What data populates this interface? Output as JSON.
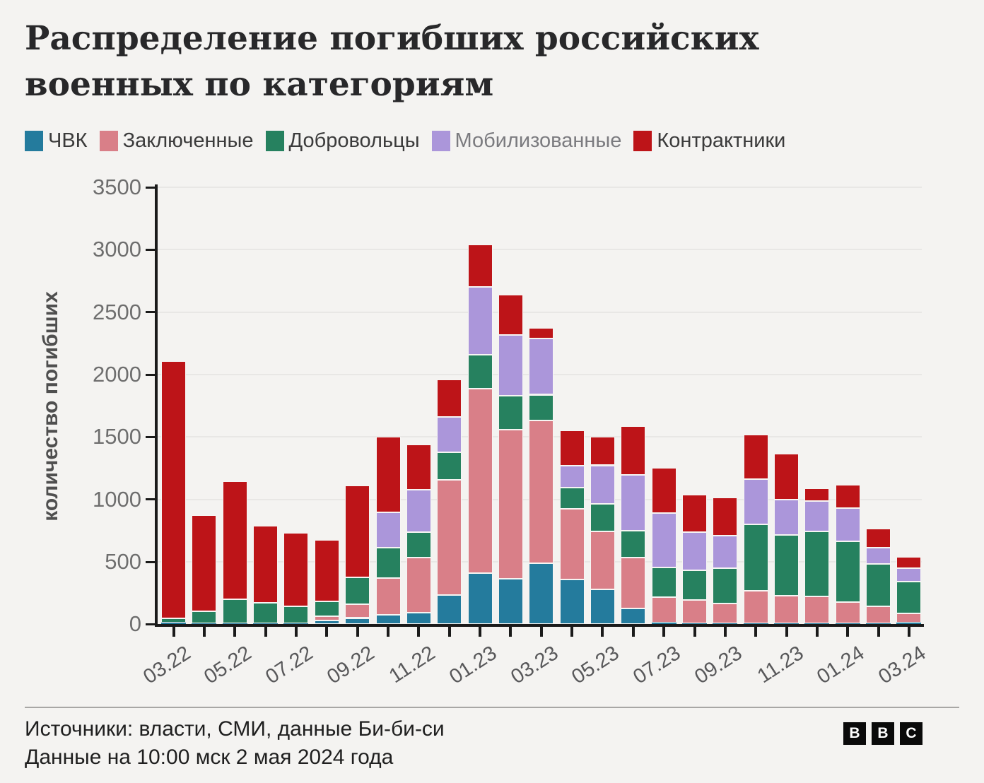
{
  "title": {
    "lines": [
      "Распределение погибших российских",
      "военных по категориям"
    ]
  },
  "legend": {
    "items": [
      {
        "label": "ЧВК",
        "color": "#247b9d",
        "text_color": "#3b3b3b"
      },
      {
        "label": "Заключенные",
        "color": "#d97f88",
        "text_color": "#3b3b3b"
      },
      {
        "label": "Добровольцы",
        "color": "#26815f",
        "text_color": "#3b3b3b"
      },
      {
        "label": "Мобилизованные",
        "color": "#ab96da",
        "text_color": "#7b7b7f"
      },
      {
        "label": "Контрактники",
        "color": "#bd1418",
        "text_color": "#3b3b3b"
      }
    ]
  },
  "chart_data": {
    "type": "bar",
    "stacked": true,
    "ylabel": "количество погибших",
    "xlabel": "",
    "ylim": [
      0,
      3500
    ],
    "grid": true,
    "legend_position": "top",
    "y_ticks": [
      0,
      500,
      1000,
      1500,
      2000,
      2500,
      3000,
      3500
    ],
    "categories": [
      "03.22",
      "04.22",
      "05.22",
      "06.22",
      "07.22",
      "08.22",
      "09.22",
      "10.22",
      "11.22",
      "12.22",
      "01.23",
      "02.23",
      "03.23",
      "04.23",
      "05.23",
      "06.23",
      "07.23",
      "08.23",
      "09.23",
      "10.23",
      "11.23",
      "12.23",
      "01.24",
      "02.24",
      "03.24"
    ],
    "x_tick_labels_shown": [
      "03.22",
      "05.22",
      "07.22",
      "09.22",
      "11.22",
      "01.23",
      "03.23",
      "05.23",
      "07.23",
      "09.23",
      "11.23",
      "01.24",
      "03.24"
    ],
    "series": [
      {
        "name": "ЧВК",
        "color": "#247b9d",
        "values": [
          12,
          6,
          6,
          6,
          5,
          28,
          50,
          75,
          91,
          232,
          409,
          364,
          487,
          358,
          279,
          126,
          13,
          9,
          6,
          9,
          8,
          8,
          6,
          5,
          15
        ]
      },
      {
        "name": "Заключенные",
        "color": "#d97f88",
        "values": [
          0,
          0,
          0,
          0,
          0,
          38,
          110,
          297,
          441,
          923,
          1477,
          1196,
          1145,
          566,
          466,
          406,
          204,
          183,
          158,
          259,
          222,
          214,
          173,
          136,
          70
        ]
      },
      {
        "name": "Добровольцы",
        "color": "#26815f",
        "values": [
          36,
          97,
          192,
          164,
          140,
          119,
          217,
          241,
          204,
          222,
          274,
          270,
          207,
          170,
          217,
          217,
          239,
          242,
          283,
          534,
          483,
          523,
          487,
          340,
          254
        ]
      },
      {
        "name": "Мобилизованные",
        "color": "#ab96da",
        "values": [
          0,
          0,
          0,
          0,
          0,
          0,
          0,
          283,
          343,
          283,
          542,
          485,
          449,
          176,
          311,
          445,
          434,
          305,
          260,
          358,
          287,
          242,
          262,
          132,
          110
        ]
      },
      {
        "name": "Контрактники",
        "color": "#bd1418",
        "values": [
          2062,
          769,
          949,
          621,
          585,
          491,
          736,
          604,
          359,
          302,
          343,
          326,
          89,
          283,
          227,
          394,
          364,
          298,
          308,
          362,
          364,
          101,
          189,
          151,
          92
        ]
      }
    ],
    "totals": [
      2110,
      872,
      1147,
      791,
      730,
      676,
      1113,
      1500,
      1438,
      1962,
      3045,
      2641,
      2377,
      1553,
      1500,
      1588,
      1254,
      1037,
      1015,
      1522,
      1364,
      1088,
      1117,
      764,
      541
    ]
  },
  "footer": {
    "source": "Источники: власти, СМИ, данные Би-би-си",
    "updated": "Данные на 10:00 мск 2 мая 2024 года",
    "logo_letters": [
      "B",
      "B",
      "C"
    ]
  }
}
